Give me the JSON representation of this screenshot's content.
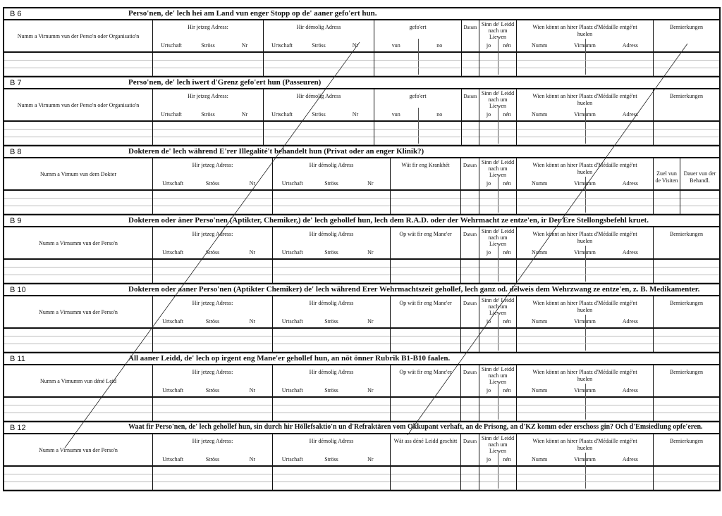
{
  "common": {
    "hir_jetzeg": "Hir jetzeg Adress:",
    "hir_demolig": "Hir démolig Adress",
    "urtschaft": "Urtschaft",
    "stross": "Ströss",
    "nr": "Nr",
    "datum": "Datum",
    "sinn": "Sinn de' Leidd nach um Liewen",
    "jo": "jo",
    "nen": "nén",
    "wien": "Wien könnt an hirer Plaatz d'Médaille entgé'nt huelen",
    "numm": "Numm",
    "virnumm": "Virnumm",
    "adress": "Adress",
    "bemierkungen": "Bemierkungen",
    "gefoert": "gefo'ert",
    "vun": "vun",
    "no": "no",
    "zuel": "Zuel vun de Visiten",
    "dauer": "Dauer vun der Behandl."
  },
  "sections": [
    {
      "id": "B 6",
      "layout": "gefoert",
      "title": "Perso'nen, de' lech hei am Land vun enger Stopp op de' aaner gefo'ert hun.",
      "name_label": "Numm a Virnumm vun der Perso'n oder Organisatio'n"
    },
    {
      "id": "B 7",
      "layout": "gefoert",
      "title": "Perso'nen, de' lech iwert d'Grenz gefo'ert hun (Passeuren)",
      "name_label": "Numm a Virnumm vun der Perso'n oder Organisatio'n"
    },
    {
      "id": "B 8",
      "layout": "doctor",
      "title": "Dokteren de' lech während E'rer Illegalité't behandelt hun (Privat oder an enger Klinik?)",
      "name_label": "Numm a Virnum vun dem Dokter",
      "extra_label": "Wät fir eng Krankhét"
    },
    {
      "id": "B 9",
      "layout": "standard",
      "title": "Dokteren oder äner Perso'nen (Aptikter, Chemiker,) de' lech gehollef hun, lech dem R.A.D. oder der Wehrmacht ze entze'en, ir Der Ere Stellongsbefehl kruet.",
      "name_label": "Numm a Virnumm vun der Perso'n",
      "extra_label": "Op wät fir eng Mane'er"
    },
    {
      "id": "B 10",
      "layout": "standard",
      "title": "Dokteren oder aaner Perso'nen (Aptikter Chemiker) de' lech während Erer Wehrmachtszeit gehollef, lech ganz od. délweis dem Wehrzwang ze entze'en, z. B. Medikamenter.",
      "name_label": "Numm a Virnumm vun der Perso'n",
      "extra_label": "Op wät fir eng Mane'er"
    },
    {
      "id": "B 11",
      "layout": "standard",
      "title": "All aaner Leidd, de' lech op irgent eng Mane'er gehollef hun, an nöt önner Rubrik B1-B10 faalen.",
      "name_label": "Numm a Virnumm vun déné Leid",
      "extra_label": "Op wät fir eng Mane'er"
    },
    {
      "id": "B 12",
      "layout": "standard",
      "title": "Waat fir Perso'nen, de' lech gehollef hun, sin durch hir Höllefsaktio'n un d'Refraktären vom Okkupant verhaft, an de Prisong, an d'KZ komm oder erschoss gin? Och d'Emsiedlung opfe'eren.",
      "name_label": "Numm a Virnumm vun der Perso'n",
      "extra_label": "Wät ass déné Leidd geschitt"
    }
  ]
}
